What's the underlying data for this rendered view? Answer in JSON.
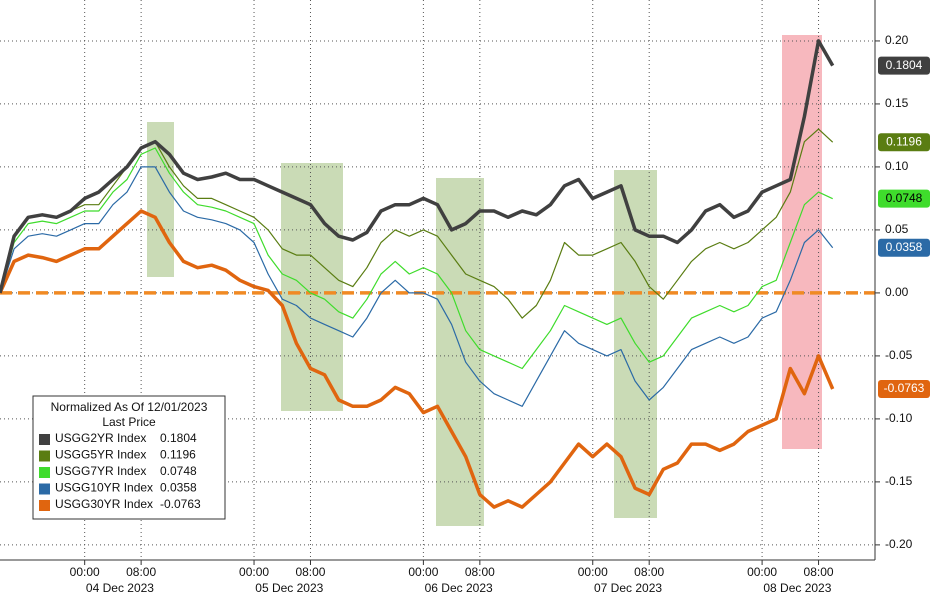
{
  "chart_data": {
    "type": "line",
    "legend_title": "Normalized As Of 12/01/2023",
    "legend_subtitle": "Last Price",
    "x": [
      -12,
      -10,
      -8,
      -6,
      -4,
      -2,
      0,
      2,
      4,
      6,
      8,
      10,
      12,
      14,
      16,
      18,
      20,
      22,
      24,
      26,
      28,
      30,
      32,
      34,
      36,
      38,
      40,
      42,
      44,
      46,
      48,
      50,
      52,
      54,
      56,
      58,
      60,
      62,
      64,
      66,
      68,
      70,
      72,
      74,
      76,
      78,
      80,
      82,
      84,
      86,
      88,
      90,
      92,
      94,
      96,
      98,
      100,
      102,
      104,
      106
    ],
    "series": [
      {
        "name": "USGG2YR Index",
        "color": "#404040",
        "width": 3.5,
        "last_label": "0.1804",
        "values": [
          0,
          0.045,
          0.06,
          0.062,
          0.06,
          0.065,
          0.075,
          0.08,
          0.09,
          0.1,
          0.115,
          0.12,
          0.11,
          0.095,
          0.09,
          0.092,
          0.095,
          0.09,
          0.09,
          0.085,
          0.08,
          0.075,
          0.07,
          0.055,
          0.045,
          0.042,
          0.048,
          0.065,
          0.07,
          0.07,
          0.075,
          0.07,
          0.05,
          0.055,
          0.065,
          0.065,
          0.06,
          0.065,
          0.062,
          0.07,
          0.085,
          0.09,
          0.075,
          0.08,
          0.085,
          0.05,
          0.045,
          0.045,
          0.04,
          0.05,
          0.065,
          0.07,
          0.06,
          0.065,
          0.08,
          0.085,
          0.09,
          0.14,
          0.2,
          0.1804
        ]
      },
      {
        "name": "USGG5YR Index",
        "color": "#5a7d12",
        "width": 1.2,
        "last_label": "0.1196",
        "values": [
          0,
          0.045,
          0.06,
          0.062,
          0.06,
          0.065,
          0.07,
          0.07,
          0.085,
          0.1,
          0.115,
          0.12,
          0.1,
          0.085,
          0.075,
          0.075,
          0.07,
          0.065,
          0.06,
          0.05,
          0.035,
          0.03,
          0.03,
          0.02,
          0.01,
          0.005,
          0.02,
          0.04,
          0.05,
          0.045,
          0.05,
          0.045,
          0.03,
          0.015,
          0.01,
          0.005,
          -0.005,
          -0.02,
          -0.01,
          0.01,
          0.04,
          0.03,
          0.03,
          0.035,
          0.04,
          0.025,
          0.005,
          -0.005,
          0.01,
          0.025,
          0.035,
          0.04,
          0.035,
          0.04,
          0.05,
          0.06,
          0.08,
          0.12,
          0.13,
          0.1196
        ]
      },
      {
        "name": "USGG7YR Index",
        "color": "#3fdc2c",
        "width": 1.2,
        "last_label": "0.0748",
        "values": [
          0,
          0.04,
          0.055,
          0.057,
          0.055,
          0.06,
          0.065,
          0.065,
          0.08,
          0.09,
          0.11,
          0.115,
          0.095,
          0.08,
          0.07,
          0.068,
          0.065,
          0.06,
          0.055,
          0.03,
          0.015,
          0.01,
          0,
          -0.005,
          -0.015,
          -0.02,
          -0.005,
          0.015,
          0.025,
          0.015,
          0.02,
          0.015,
          0,
          -0.03,
          -0.045,
          -0.05,
          -0.055,
          -0.06,
          -0.045,
          -0.03,
          -0.01,
          -0.015,
          -0.02,
          -0.025,
          -0.02,
          -0.04,
          -0.055,
          -0.05,
          -0.035,
          -0.02,
          -0.015,
          -0.01,
          -0.015,
          -0.01,
          0.005,
          0.01,
          0.04,
          0.07,
          0.08,
          0.0748
        ]
      },
      {
        "name": "USGG10YR Index",
        "color": "#2b6aa6",
        "width": 1.2,
        "last_label": "0.0358",
        "values": [
          0,
          0.035,
          0.045,
          0.047,
          0.045,
          0.05,
          0.055,
          0.055,
          0.07,
          0.08,
          0.1,
          0.1,
          0.08,
          0.065,
          0.06,
          0.058,
          0.055,
          0.05,
          0.04,
          0.015,
          -0.005,
          -0.01,
          -0.02,
          -0.025,
          -0.03,
          -0.035,
          -0.02,
          0,
          0.01,
          0,
          0,
          -0.005,
          -0.025,
          -0.055,
          -0.07,
          -0.08,
          -0.085,
          -0.09,
          -0.07,
          -0.05,
          -0.03,
          -0.04,
          -0.045,
          -0.05,
          -0.045,
          -0.07,
          -0.085,
          -0.075,
          -0.06,
          -0.045,
          -0.04,
          -0.035,
          -0.04,
          -0.035,
          -0.02,
          -0.015,
          0.01,
          0.04,
          0.05,
          0.0358
        ]
      },
      {
        "name": "USGG30YR Index",
        "color": "#e0650f",
        "width": 3.5,
        "last_label": "-0.0763",
        "values": [
          0,
          0.025,
          0.03,
          0.028,
          0.025,
          0.03,
          0.035,
          0.035,
          0.045,
          0.055,
          0.065,
          0.06,
          0.04,
          0.025,
          0.02,
          0.022,
          0.018,
          0.01,
          0.005,
          0.002,
          -0.01,
          -0.04,
          -0.06,
          -0.065,
          -0.085,
          -0.09,
          -0.09,
          -0.085,
          -0.075,
          -0.08,
          -0.095,
          -0.09,
          -0.11,
          -0.13,
          -0.16,
          -0.17,
          -0.165,
          -0.17,
          -0.16,
          -0.15,
          -0.135,
          -0.12,
          -0.13,
          -0.12,
          -0.13,
          -0.155,
          -0.16,
          -0.14,
          -0.135,
          -0.12,
          -0.12,
          -0.125,
          -0.12,
          -0.11,
          -0.105,
          -0.1,
          -0.06,
          -0.08,
          -0.05,
          -0.0763
        ]
      }
    ],
    "xlim": [
      -12,
      112
    ],
    "xticks": [
      {
        "value": 0,
        "label": "00:00"
      },
      {
        "value": 8,
        "label": "08:00"
      },
      {
        "value": 24,
        "label": "00:00"
      },
      {
        "value": 32,
        "label": "08:00"
      },
      {
        "value": 48,
        "label": "00:00"
      },
      {
        "value": 56,
        "label": "08:00"
      },
      {
        "value": 72,
        "label": "00:00"
      },
      {
        "value": 80,
        "label": "08:00"
      },
      {
        "value": 96,
        "label": "00:00"
      },
      {
        "value": 104,
        "label": "08:00"
      }
    ],
    "xdates": [
      {
        "value": 5,
        "label": "04 Dec 2023"
      },
      {
        "value": 29,
        "label": "05 Dec 2023"
      },
      {
        "value": 53,
        "label": "06 Dec 2023"
      },
      {
        "value": 77,
        "label": "07 Dec 2023"
      },
      {
        "value": 101,
        "label": "08 Dec 2023"
      }
    ],
    "ylim": [
      -0.212,
      0.2325
    ],
    "yticks": [
      {
        "value": 0.2,
        "label": "0.20"
      },
      0.15,
      {
        "value": 0.1,
        "label": "0.10"
      },
      0.05,
      {
        "value": 0,
        "label": "0.00"
      },
      -0.05,
      {
        "value": -0.1,
        "label": "-0.10"
      },
      -0.15,
      {
        "value": -0.2,
        "label": "-0.20"
      }
    ],
    "reference_line": {
      "value": 0,
      "color": "#f08a24"
    },
    "grid": true
  }
}
